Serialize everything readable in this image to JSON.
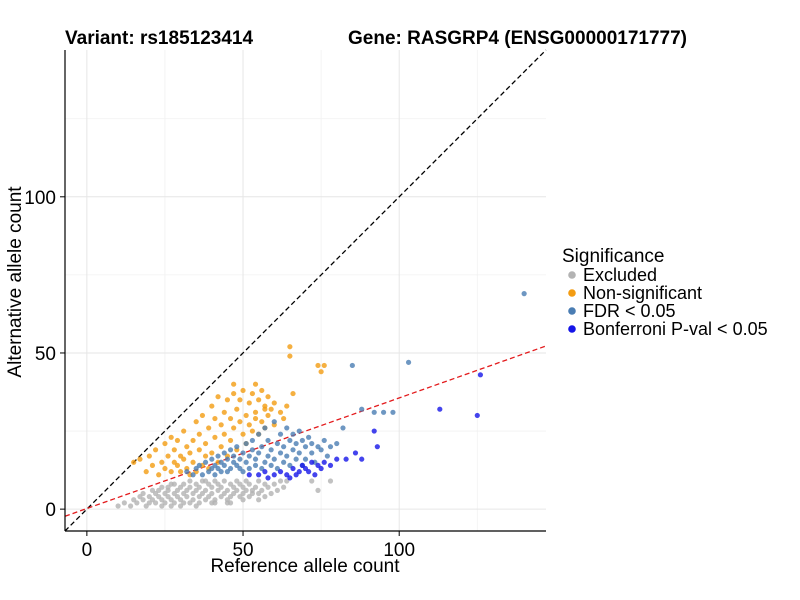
{
  "chart_data": {
    "type": "scatter",
    "title_left": "Variant: rs185123414",
    "title_right": "Gene: RASGRP4 (ENSG00000171777)",
    "xlabel": "Reference allele count",
    "ylabel": "Alternative allele count",
    "xlim": [
      -7,
      147
    ],
    "ylim": [
      -7,
      147
    ],
    "xticks": [
      0,
      50,
      100
    ],
    "yticks": [
      0,
      50,
      100
    ],
    "grid": true,
    "reference_lines": [
      {
        "name": "identity",
        "slope": 1,
        "intercept": 0,
        "color": "#000000",
        "style": "dashed"
      },
      {
        "name": "fit",
        "slope": 0.354,
        "intercept": 0.2,
        "color": "#e31a1c",
        "style": "dashed"
      }
    ],
    "legend": {
      "title": "Significance",
      "position": "right"
    },
    "series": [
      {
        "name": "Excluded",
        "color": "#b3b3b3",
        "points": [
          [
            10,
            1
          ],
          [
            12,
            2
          ],
          [
            14,
            1
          ],
          [
            15,
            3
          ],
          [
            16,
            2
          ],
          [
            17,
            4
          ],
          [
            18,
            3
          ],
          [
            18,
            5
          ],
          [
            19,
            1
          ],
          [
            20,
            2
          ],
          [
            20,
            4
          ],
          [
            21,
            6
          ],
          [
            21,
            3
          ],
          [
            22,
            5
          ],
          [
            22,
            2
          ],
          [
            23,
            4
          ],
          [
            23,
            6
          ],
          [
            24,
            3
          ],
          [
            24,
            7
          ],
          [
            25,
            5
          ],
          [
            25,
            2
          ],
          [
            26,
            4
          ],
          [
            26,
            6
          ],
          [
            27,
            3
          ],
          [
            27,
            8
          ],
          [
            28,
            5
          ],
          [
            28,
            2
          ],
          [
            29,
            6
          ],
          [
            29,
            4
          ],
          [
            30,
            3
          ],
          [
            30,
            7
          ],
          [
            31,
            5
          ],
          [
            31,
            8
          ],
          [
            32,
            4
          ],
          [
            32,
            6
          ],
          [
            33,
            2
          ],
          [
            33,
            7
          ],
          [
            34,
            5
          ],
          [
            34,
            3
          ],
          [
            35,
            8
          ],
          [
            35,
            6
          ],
          [
            36,
            4
          ],
          [
            36,
            7
          ],
          [
            37,
            5
          ],
          [
            37,
            9
          ],
          [
            38,
            3
          ],
          [
            38,
            6
          ],
          [
            39,
            8
          ],
          [
            39,
            4
          ],
          [
            40,
            7
          ],
          [
            40,
            5
          ],
          [
            41,
            9
          ],
          [
            41,
            3
          ],
          [
            42,
            6
          ],
          [
            42,
            8
          ],
          [
            43,
            4
          ],
          [
            43,
            7
          ],
          [
            44,
            5
          ],
          [
            44,
            9
          ],
          [
            45,
            6
          ],
          [
            45,
            3
          ],
          [
            46,
            8
          ],
          [
            46,
            4
          ],
          [
            47,
            7
          ],
          [
            47,
            5
          ],
          [
            48,
            9
          ],
          [
            48,
            6
          ],
          [
            49,
            4
          ],
          [
            49,
            8
          ],
          [
            50,
            5
          ],
          [
            50,
            7
          ],
          [
            51,
            6
          ],
          [
            51,
            9
          ],
          [
            52,
            4
          ],
          [
            52,
            8
          ],
          [
            53,
            6
          ],
          [
            53,
            5
          ],
          [
            54,
            7
          ],
          [
            55,
            9
          ],
          [
            55,
            5
          ],
          [
            56,
            6
          ],
          [
            57,
            8
          ],
          [
            57,
            4
          ],
          [
            58,
            7
          ],
          [
            59,
            5
          ],
          [
            60,
            8
          ],
          [
            61,
            6
          ],
          [
            62,
            9
          ],
          [
            63,
            7
          ],
          [
            64,
            9
          ],
          [
            72,
            9
          ],
          [
            74,
            6
          ],
          [
            78,
            9
          ],
          [
            30,
            1
          ],
          [
            35,
            1
          ],
          [
            40,
            2
          ],
          [
            45,
            2
          ],
          [
            50,
            3
          ],
          [
            55,
            3
          ],
          [
            28,
            8
          ],
          [
            33,
            9
          ],
          [
            38,
            9
          ],
          [
            26,
            7
          ],
          [
            31,
            2
          ],
          [
            36,
            2
          ],
          [
            41,
            2
          ],
          [
            46,
            2
          ],
          [
            24,
            1
          ],
          [
            27,
            1
          ]
        ]
      },
      {
        "name": "Non-significant",
        "color": "#f39c12",
        "points": [
          [
            15,
            15
          ],
          [
            17,
            16
          ],
          [
            19,
            12
          ],
          [
            20,
            17
          ],
          [
            21,
            14
          ],
          [
            22,
            19
          ],
          [
            23,
            11
          ],
          [
            24,
            15
          ],
          [
            25,
            21
          ],
          [
            25,
            13
          ],
          [
            26,
            17
          ],
          [
            27,
            23
          ],
          [
            27,
            12
          ],
          [
            28,
            15
          ],
          [
            28,
            19
          ],
          [
            29,
            14
          ],
          [
            29,
            22
          ],
          [
            30,
            17
          ],
          [
            30,
            12
          ],
          [
            31,
            25
          ],
          [
            31,
            16
          ],
          [
            32,
            13
          ],
          [
            32,
            20
          ],
          [
            33,
            18
          ],
          [
            33,
            11
          ],
          [
            34,
            22
          ],
          [
            34,
            15
          ],
          [
            35,
            28
          ],
          [
            35,
            12
          ],
          [
            36,
            19
          ],
          [
            36,
            24
          ],
          [
            37,
            14
          ],
          [
            37,
            30
          ],
          [
            38,
            21
          ],
          [
            38,
            17
          ],
          [
            39,
            26
          ],
          [
            39,
            13
          ],
          [
            40,
            33
          ],
          [
            40,
            18
          ],
          [
            41,
            23
          ],
          [
            41,
            29
          ],
          [
            42,
            15
          ],
          [
            42,
            36
          ],
          [
            43,
            27
          ],
          [
            43,
            20
          ],
          [
            44,
            31
          ],
          [
            44,
            24
          ],
          [
            45,
            35
          ],
          [
            45,
            17
          ],
          [
            46,
            29
          ],
          [
            46,
            22
          ],
          [
            47,
            37
          ],
          [
            47,
            26
          ],
          [
            48,
            32
          ],
          [
            48,
            19
          ],
          [
            49,
            28
          ],
          [
            49,
            35
          ],
          [
            50,
            24
          ],
          [
            50,
            38
          ],
          [
            51,
            30
          ],
          [
            51,
            21
          ],
          [
            52,
            34
          ],
          [
            52,
            27
          ],
          [
            53,
            37
          ],
          [
            53,
            25
          ],
          [
            54,
            31
          ],
          [
            54,
            29
          ],
          [
            55,
            35
          ],
          [
            55,
            24
          ],
          [
            56,
            38
          ],
          [
            56,
            28
          ],
          [
            57,
            33
          ],
          [
            57,
            26
          ],
          [
            58,
            36
          ],
          [
            58,
            30
          ],
          [
            59,
            32
          ],
          [
            60,
            27
          ],
          [
            65,
            52
          ],
          [
            65,
            49
          ],
          [
            66,
            37
          ],
          [
            64,
            33
          ],
          [
            63,
            29
          ],
          [
            74,
            46
          ],
          [
            75,
            44
          ],
          [
            76,
            46
          ],
          [
            60,
            34
          ],
          [
            62,
            31
          ],
          [
            47,
            40
          ],
          [
            54,
            40
          ],
          [
            57,
            32
          ]
        ]
      },
      {
        "name": "FDR < 0.05",
        "color": "#4a7db3",
        "points": [
          [
            32,
            12
          ],
          [
            34,
            11
          ],
          [
            35,
            13
          ],
          [
            36,
            14
          ],
          [
            37,
            11
          ],
          [
            38,
            15
          ],
          [
            39,
            12
          ],
          [
            40,
            16
          ],
          [
            40,
            13
          ],
          [
            41,
            14
          ],
          [
            41,
            11
          ],
          [
            42,
            17
          ],
          [
            42,
            13
          ],
          [
            43,
            15
          ],
          [
            43,
            12
          ],
          [
            44,
            18
          ],
          [
            44,
            14
          ],
          [
            45,
            16
          ],
          [
            45,
            12
          ],
          [
            46,
            19
          ],
          [
            46,
            13
          ],
          [
            47,
            15
          ],
          [
            47,
            17
          ],
          [
            48,
            14
          ],
          [
            48,
            20
          ],
          [
            49,
            13
          ],
          [
            49,
            16
          ],
          [
            50,
            18
          ],
          [
            50,
            12
          ],
          [
            51,
            21
          ],
          [
            51,
            15
          ],
          [
            52,
            17
          ],
          [
            52,
            13
          ],
          [
            53,
            19
          ],
          [
            53,
            22
          ],
          [
            54,
            14
          ],
          [
            54,
            16
          ],
          [
            55,
            24
          ],
          [
            55,
            18
          ],
          [
            56,
            13
          ],
          [
            56,
            20
          ],
          [
            57,
            15
          ],
          [
            57,
            26
          ],
          [
            58,
            17
          ],
          [
            58,
            22
          ],
          [
            59,
            14
          ],
          [
            59,
            19
          ],
          [
            60,
            16
          ],
          [
            60,
            28
          ],
          [
            61,
            21
          ],
          [
            61,
            13
          ],
          [
            62,
            18
          ],
          [
            62,
            24
          ],
          [
            63,
            15
          ],
          [
            63,
            20
          ],
          [
            64,
            26
          ],
          [
            64,
            17
          ],
          [
            65,
            22
          ],
          [
            65,
            14
          ],
          [
            66,
            19
          ],
          [
            66,
            24
          ],
          [
            67,
            16
          ],
          [
            67,
            21
          ],
          [
            68,
            25
          ],
          [
            68,
            18
          ],
          [
            69,
            14
          ],
          [
            69,
            22
          ],
          [
            70,
            20
          ],
          [
            70,
            16
          ],
          [
            71,
            23
          ],
          [
            72,
            18
          ],
          [
            72,
            21
          ],
          [
            73,
            15
          ],
          [
            74,
            20
          ],
          [
            75,
            19
          ],
          [
            76,
            22
          ],
          [
            77,
            17
          ],
          [
            78,
            20
          ],
          [
            80,
            21
          ],
          [
            82,
            26
          ],
          [
            85,
            46
          ],
          [
            88,
            32
          ],
          [
            92,
            31
          ],
          [
            95,
            31
          ],
          [
            98,
            31
          ],
          [
            103,
            47
          ],
          [
            140,
            69
          ]
        ]
      },
      {
        "name": "Bonferroni P-val < 0.05",
        "color": "#1515e8",
        "points": [
          [
            52,
            11
          ],
          [
            55,
            11
          ],
          [
            57,
            12
          ],
          [
            58,
            10
          ],
          [
            60,
            11
          ],
          [
            62,
            12
          ],
          [
            64,
            11
          ],
          [
            65,
            10
          ],
          [
            66,
            13
          ],
          [
            67,
            11
          ],
          [
            68,
            12
          ],
          [
            69,
            14
          ],
          [
            70,
            13
          ],
          [
            71,
            12
          ],
          [
            72,
            15
          ],
          [
            73,
            11
          ],
          [
            74,
            14
          ],
          [
            75,
            13
          ],
          [
            76,
            15
          ],
          [
            78,
            14
          ],
          [
            80,
            16
          ],
          [
            83,
            16
          ],
          [
            86,
            18
          ],
          [
            88,
            16
          ],
          [
            92,
            25
          ],
          [
            93,
            20
          ],
          [
            113,
            32
          ],
          [
            125,
            30
          ],
          [
            126,
            43
          ]
        ]
      }
    ]
  }
}
